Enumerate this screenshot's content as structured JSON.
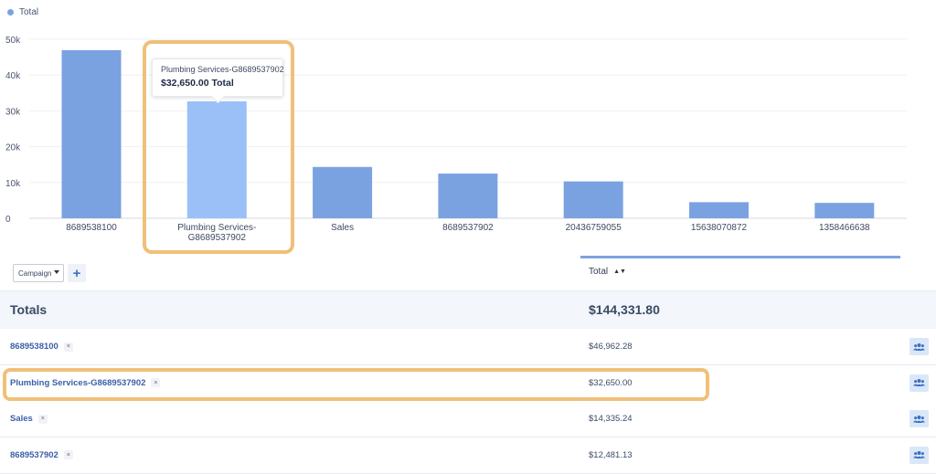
{
  "legend": {
    "label": "Total",
    "color": "#7ba2e0"
  },
  "tooltip": {
    "title": "Plumbing Services-G8689537902",
    "value": "$32,650.00 Total"
  },
  "chart_data": {
    "type": "bar",
    "title": "",
    "ylim": [
      0,
      50000
    ],
    "y_ticks": [
      0,
      10000,
      20000,
      30000,
      40000,
      50000
    ],
    "y_tick_labels": [
      "0",
      "10k",
      "20k",
      "30k",
      "40k",
      "50k"
    ],
    "grid": true,
    "legend_position": "top-left",
    "categories": [
      "8689538100",
      "Plumbing Services-G8689537902",
      "Sales",
      "8689537902",
      "20436759055",
      "15638070872",
      "1358466638"
    ],
    "category_lines": [
      [
        "8689538100"
      ],
      [
        "Plumbing Services-",
        "G8689537902"
      ],
      [
        "Sales"
      ],
      [
        "8689537902"
      ],
      [
        "20436759055"
      ],
      [
        "15638070872"
      ],
      [
        "1358466638"
      ]
    ],
    "series": [
      {
        "name": "Total",
        "values": [
          46962.28,
          32650.0,
          14335.24,
          12481.13,
          10300,
          4500,
          4300
        ]
      }
    ],
    "bar_color": "#7ba2e0",
    "highlight_color": "#9ac0f7",
    "highlight_index": 1
  },
  "table": {
    "campaign_label": "Campaign",
    "add_label": "+",
    "total_header": "Total",
    "sort_glyph": "▲▼",
    "totals_label": "Totals",
    "totals_value": "$144,331.80",
    "rows": [
      {
        "name": "8689538100",
        "value": "$46,962.28"
      },
      {
        "name": "Plumbing Services-G8689537902",
        "value": "$32,650.00"
      },
      {
        "name": "Sales",
        "value": "$14,335.24"
      },
      {
        "name": "8689537902",
        "value": "$12,481.13"
      }
    ],
    "remove_glyph": "×"
  }
}
